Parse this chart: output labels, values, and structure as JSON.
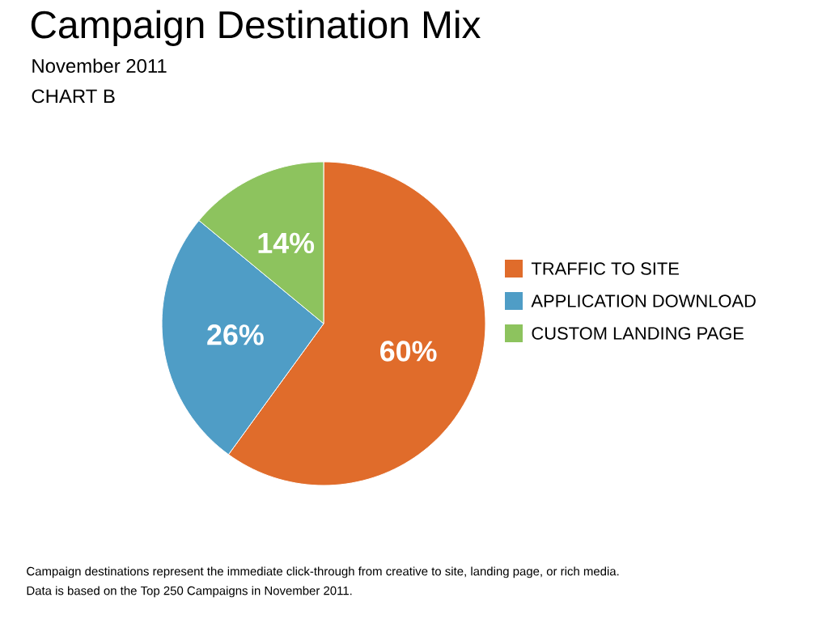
{
  "chart_data": {
    "type": "pie",
    "title": "Campaign Destination Mix",
    "subtitle": "November 2011",
    "categories": [
      "TRAFFIC TO SITE",
      "APPLICATION DOWNLOAD",
      "CUSTOM LANDING PAGE"
    ],
    "values": [
      60,
      26,
      14
    ],
    "colors": [
      "#e06c2b",
      "#4f9dc6",
      "#8dc35e"
    ],
    "value_labels": [
      "60%",
      "26%",
      "14%"
    ],
    "legend": "right",
    "annotations": [
      "CHART B",
      "Campaign destinations represent the immediate click-through from creative to site, landing page, or rich media.",
      "Data is based on the Top 250 Campaigns in November 2011."
    ]
  }
}
